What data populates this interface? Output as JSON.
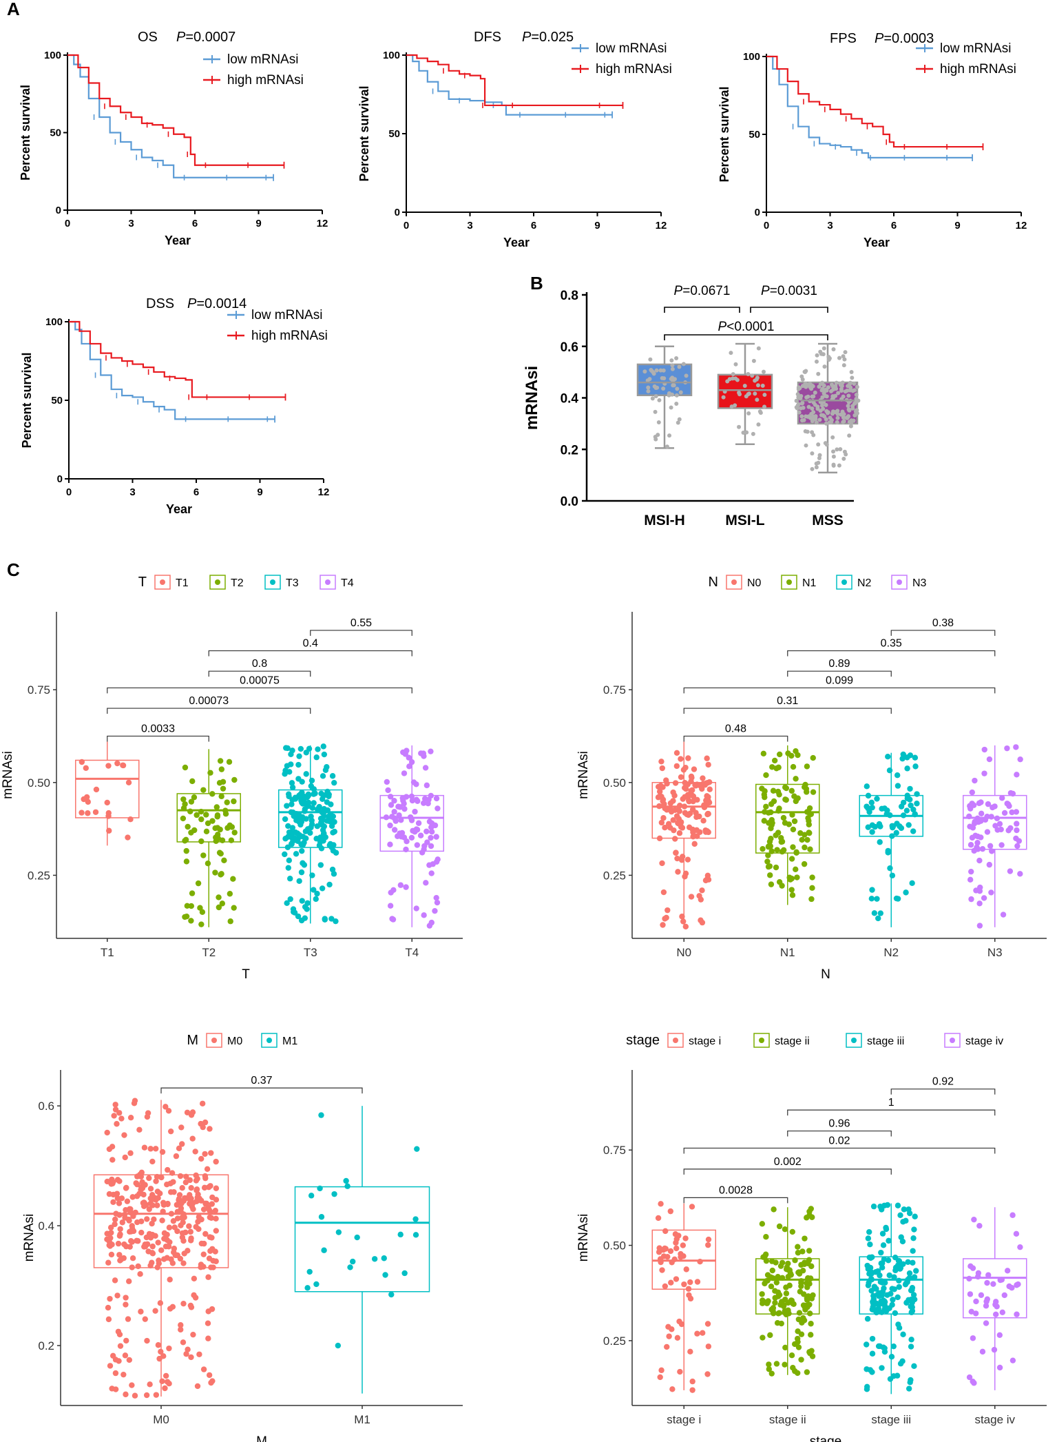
{
  "panel_labels": {
    "A": "A",
    "B": "B",
    "C": "C"
  },
  "colors": {
    "low": "#5b9bd5",
    "high": "#e8191f",
    "msih": "#5b8fd6",
    "msil": "#e8131a",
    "mss": "#9a4a9f",
    "box_gray": "#999999",
    "red": "#f8766d",
    "green": "#7cae00",
    "cyan": "#00bfc4",
    "purple": "#c77cff"
  },
  "chart_data": [
    {
      "id": "km_os",
      "type": "line",
      "title": "OS",
      "p_label": "P",
      "p_value": "=0.0007",
      "xlabel": "Year",
      "ylabel": "Percent survival",
      "xlim": [
        0,
        12
      ],
      "ylim": [
        0,
        100
      ],
      "xticks": [
        "0",
        "3",
        "6",
        "9",
        "12"
      ],
      "yticks": [
        "0",
        "50",
        "100"
      ],
      "series": [
        {
          "name": "low mRNAsi",
          "x": [
            0,
            0.3,
            0.6,
            1,
            1.5,
            2,
            2.5,
            3,
            3.5,
            4,
            4.5,
            5,
            6,
            7,
            8,
            9,
            9.7
          ],
          "y": [
            100,
            94,
            86,
            72,
            60,
            50,
            44,
            39,
            34,
            32,
            29,
            21,
            21,
            21,
            21,
            21,
            21
          ]
        },
        {
          "name": "high mRNAsi",
          "x": [
            0,
            0.5,
            1,
            1.5,
            2,
            2.5,
            3,
            3.5,
            4,
            4.5,
            5,
            5.5,
            5.8,
            6,
            7,
            8,
            9,
            10.2
          ],
          "y": [
            100,
            92,
            82,
            72,
            67,
            63,
            60,
            56,
            55,
            53,
            49,
            47,
            36,
            29,
            29,
            29,
            29,
            29
          ]
        }
      ]
    },
    {
      "id": "km_dfs",
      "type": "line",
      "title": "DFS",
      "p_label": "P",
      "p_value": "=0.025",
      "xlabel": "Year",
      "ylabel": "Percent survival",
      "xlim": [
        0,
        12
      ],
      "ylim": [
        0,
        100
      ],
      "xticks": [
        "0",
        "3",
        "6",
        "9",
        "12"
      ],
      "yticks": [
        "0",
        "50",
        "100"
      ],
      "series": [
        {
          "name": "low mRNAsi",
          "x": [
            0,
            0.3,
            0.6,
            1,
            1.5,
            2,
            3,
            3.7,
            4.5,
            4.7,
            6,
            7,
            8,
            9,
            9.7
          ],
          "y": [
            100,
            96,
            90,
            83,
            77,
            72,
            71,
            70,
            68,
            62,
            62,
            62,
            62,
            62,
            62
          ]
        },
        {
          "name": "high mRNAsi",
          "x": [
            0,
            0.5,
            1,
            1.5,
            2,
            2.5,
            3,
            3.5,
            3.7,
            4,
            6,
            8,
            10.2
          ],
          "y": [
            100,
            98,
            96,
            94,
            90,
            88,
            87,
            85,
            68,
            68,
            68,
            68,
            68
          ]
        }
      ]
    },
    {
      "id": "km_fps",
      "type": "line",
      "title": "FPS",
      "p_label": "P",
      "p_value": "=0.0003",
      "xlabel": "Year",
      "ylabel": "Percent survival",
      "xlim": [
        0,
        12
      ],
      "ylim": [
        0,
        100
      ],
      "xticks": [
        "0",
        "3",
        "6",
        "9",
        "12"
      ],
      "yticks": [
        "0",
        "50",
        "100"
      ],
      "series": [
        {
          "name": "low mRNAsi",
          "x": [
            0,
            0.3,
            0.6,
            1,
            1.5,
            2,
            2.5,
            3,
            3.5,
            4,
            4.5,
            4.8,
            5,
            6,
            7,
            8,
            9,
            9.7
          ],
          "y": [
            100,
            92,
            82,
            68,
            55,
            48,
            44,
            43,
            42,
            40,
            38,
            35,
            35,
            35,
            35,
            35,
            35,
            35
          ]
        },
        {
          "name": "high mRNAsi",
          "x": [
            0,
            0.5,
            1,
            1.5,
            2,
            2.5,
            3,
            3.5,
            4,
            4.5,
            5,
            5.5,
            5.8,
            6,
            7,
            8,
            9,
            10.2
          ],
          "y": [
            100,
            92,
            84,
            76,
            71,
            69,
            66,
            63,
            60,
            57,
            55,
            50,
            45,
            42,
            42,
            42,
            42,
            42
          ]
        }
      ]
    },
    {
      "id": "km_dss",
      "type": "line",
      "title": "DSS",
      "p_label": "P",
      "p_value": "=0.0014",
      "xlabel": "Year",
      "ylabel": "Percent survival",
      "xlim": [
        0,
        12
      ],
      "ylim": [
        0,
        100
      ],
      "xticks": [
        "0",
        "3",
        "6",
        "9",
        "12"
      ],
      "yticks": [
        "0",
        "50",
        "100"
      ],
      "series": [
        {
          "name": "low mRNAsi",
          "x": [
            0,
            0.3,
            0.6,
            1,
            1.5,
            2,
            2.5,
            3,
            3.5,
            4,
            4.5,
            5,
            6,
            7,
            8,
            9,
            9.7
          ],
          "y": [
            100,
            95,
            86,
            76,
            66,
            57,
            53,
            52,
            49,
            46,
            44,
            38,
            38,
            38,
            38,
            38,
            38
          ]
        },
        {
          "name": "high mRNAsi",
          "x": [
            0,
            0.5,
            1,
            1.5,
            2,
            2.5,
            3,
            3.5,
            4,
            4.5,
            5,
            5.5,
            5.8,
            6,
            7,
            8,
            9,
            10.2
          ],
          "y": [
            100,
            94,
            86,
            80,
            77,
            75,
            73,
            71,
            68,
            65,
            64,
            63,
            52,
            52,
            52,
            52,
            52,
            52
          ]
        }
      ]
    },
    {
      "id": "box_msi",
      "type": "box",
      "ylabel": "mRNAsi",
      "ylim": [
        0.0,
        0.8
      ],
      "yticks": [
        "0.0",
        "0.2",
        "0.4",
        "0.6",
        "0.8"
      ],
      "categories": [
        "MSI-H",
        "MSI-L",
        "MSS"
      ],
      "boxes": [
        {
          "min": 0.205,
          "q1": 0.41,
          "median": 0.46,
          "q3": 0.53,
          "max": 0.6,
          "n": 55
        },
        {
          "min": 0.22,
          "q1": 0.36,
          "median": 0.43,
          "q3": 0.49,
          "max": 0.61,
          "n": 40
        },
        {
          "min": 0.11,
          "q1": 0.3,
          "median": 0.39,
          "q3": 0.46,
          "max": 0.61,
          "n": 220
        }
      ],
      "comparisons": [
        {
          "from": 0,
          "to": 1,
          "p_label": "P",
          "p_value": "=0.0671"
        },
        {
          "from": 1,
          "to": 2,
          "p_label": "P",
          "p_value": "=0.0031"
        },
        {
          "from": 0,
          "to": 2,
          "p_label": "P",
          "p_value": "<0.0001"
        }
      ]
    },
    {
      "id": "gg_T",
      "type": "box",
      "legend_title": "T",
      "xlabel": "T",
      "ylabel": "mRNAsi",
      "ylim": [
        0.08,
        0.96
      ],
      "ytick_values": [
        0.25,
        0.5,
        0.75
      ],
      "yticks": [
        "0.25",
        "0.50",
        "0.75"
      ],
      "categories": [
        "T1",
        "T2",
        "T3",
        "T4"
      ],
      "box_colors": [
        "red",
        "green",
        "cyan",
        "purple"
      ],
      "boxes": [
        {
          "min": 0.33,
          "q1": 0.405,
          "median": 0.51,
          "q3": 0.56,
          "max": 0.61,
          "n": 20
        },
        {
          "min": 0.11,
          "q1": 0.34,
          "median": 0.425,
          "q3": 0.47,
          "max": 0.59,
          "n": 80
        },
        {
          "min": 0.12,
          "q1": 0.325,
          "median": 0.42,
          "q3": 0.48,
          "max": 0.6,
          "n": 200
        },
        {
          "min": 0.11,
          "q1": 0.315,
          "median": 0.405,
          "q3": 0.465,
          "max": 0.6,
          "n": 100
        }
      ],
      "comparisons": [
        {
          "from": 0,
          "to": 1,
          "label": "0.0033"
        },
        {
          "from": 0,
          "to": 2,
          "label": "0.00073"
        },
        {
          "from": 0,
          "to": 3,
          "label": "0.00075"
        },
        {
          "from": 1,
          "to": 2,
          "label": "0.8"
        },
        {
          "from": 1,
          "to": 3,
          "label": "0.4"
        },
        {
          "from": 2,
          "to": 3,
          "label": "0.55"
        }
      ]
    },
    {
      "id": "gg_N",
      "type": "box",
      "legend_title": "N",
      "xlabel": "N",
      "ylabel": "mRNAsi",
      "ylim": [
        0.08,
        0.96
      ],
      "ytick_values": [
        0.25,
        0.5,
        0.75
      ],
      "yticks": [
        "0.25",
        "0.50",
        "0.75"
      ],
      "categories": [
        "N0",
        "N1",
        "N2",
        "N3"
      ],
      "box_colors": [
        "red",
        "green",
        "cyan",
        "purple"
      ],
      "boxes": [
        {
          "min": 0.11,
          "q1": 0.35,
          "median": 0.435,
          "q3": 0.5,
          "max": 0.61,
          "n": 150
        },
        {
          "min": 0.17,
          "q1": 0.31,
          "median": 0.42,
          "q3": 0.495,
          "max": 0.6,
          "n": 110
        },
        {
          "min": 0.11,
          "q1": 0.355,
          "median": 0.41,
          "q3": 0.465,
          "max": 0.58,
          "n": 70
        },
        {
          "min": 0.11,
          "q1": 0.32,
          "median": 0.405,
          "q3": 0.465,
          "max": 0.6,
          "n": 80
        }
      ],
      "comparisons": [
        {
          "from": 0,
          "to": 1,
          "label": "0.48"
        },
        {
          "from": 0,
          "to": 2,
          "label": "0.31"
        },
        {
          "from": 0,
          "to": 3,
          "label": "0.099"
        },
        {
          "from": 1,
          "to": 2,
          "label": "0.89"
        },
        {
          "from": 1,
          "to": 3,
          "label": "0.35"
        },
        {
          "from": 2,
          "to": 3,
          "label": "0.38"
        }
      ]
    },
    {
      "id": "gg_M",
      "type": "box",
      "legend_title": "M",
      "xlabel": "M",
      "ylabel": "mRNAsi",
      "ylim": [
        0.1,
        0.66
      ],
      "ytick_values": [
        0.2,
        0.4,
        0.6
      ],
      "yticks": [
        "0.2",
        "0.4",
        "0.6"
      ],
      "categories": [
        "M0",
        "M1"
      ],
      "box_colors": [
        "red",
        "cyan"
      ],
      "boxes": [
        {
          "min": 0.115,
          "q1": 0.33,
          "median": 0.42,
          "q3": 0.485,
          "max": 0.61,
          "n": 380
        },
        {
          "min": 0.12,
          "q1": 0.29,
          "median": 0.405,
          "q3": 0.465,
          "max": 0.6,
          "n": 25
        }
      ],
      "comparisons": [
        {
          "from": 0,
          "to": 1,
          "label": "0.37"
        }
      ]
    },
    {
      "id": "gg_stage",
      "type": "box",
      "legend_title": "stage",
      "xlabel": "stage",
      "ylabel": "mRNAsi",
      "ylim": [
        0.08,
        0.96
      ],
      "ytick_values": [
        0.25,
        0.5,
        0.75
      ],
      "yticks": [
        "0.25",
        "0.50",
        "0.75"
      ],
      "categories": [
        "stage i",
        "stage ii",
        "stage iii",
        "stage iv"
      ],
      "box_colors": [
        "red",
        "green",
        "cyan",
        "purple"
      ],
      "boxes": [
        {
          "min": 0.12,
          "q1": 0.385,
          "median": 0.46,
          "q3": 0.54,
          "max": 0.61,
          "n": 60
        },
        {
          "min": 0.16,
          "q1": 0.32,
          "median": 0.41,
          "q3": 0.465,
          "max": 0.6,
          "n": 150
        },
        {
          "min": 0.11,
          "q1": 0.32,
          "median": 0.41,
          "q3": 0.47,
          "max": 0.61,
          "n": 160
        },
        {
          "min": 0.12,
          "q1": 0.31,
          "median": 0.415,
          "q3": 0.465,
          "max": 0.6,
          "n": 45
        }
      ],
      "comparisons": [
        {
          "from": 0,
          "to": 1,
          "label": "0.0028"
        },
        {
          "from": 0,
          "to": 2,
          "label": "0.002"
        },
        {
          "from": 0,
          "to": 3,
          "label": "0.02"
        },
        {
          "from": 1,
          "to": 2,
          "label": "0.96"
        },
        {
          "from": 1,
          "to": 3,
          "label": "1"
        },
        {
          "from": 2,
          "to": 3,
          "label": "0.92"
        }
      ]
    }
  ]
}
